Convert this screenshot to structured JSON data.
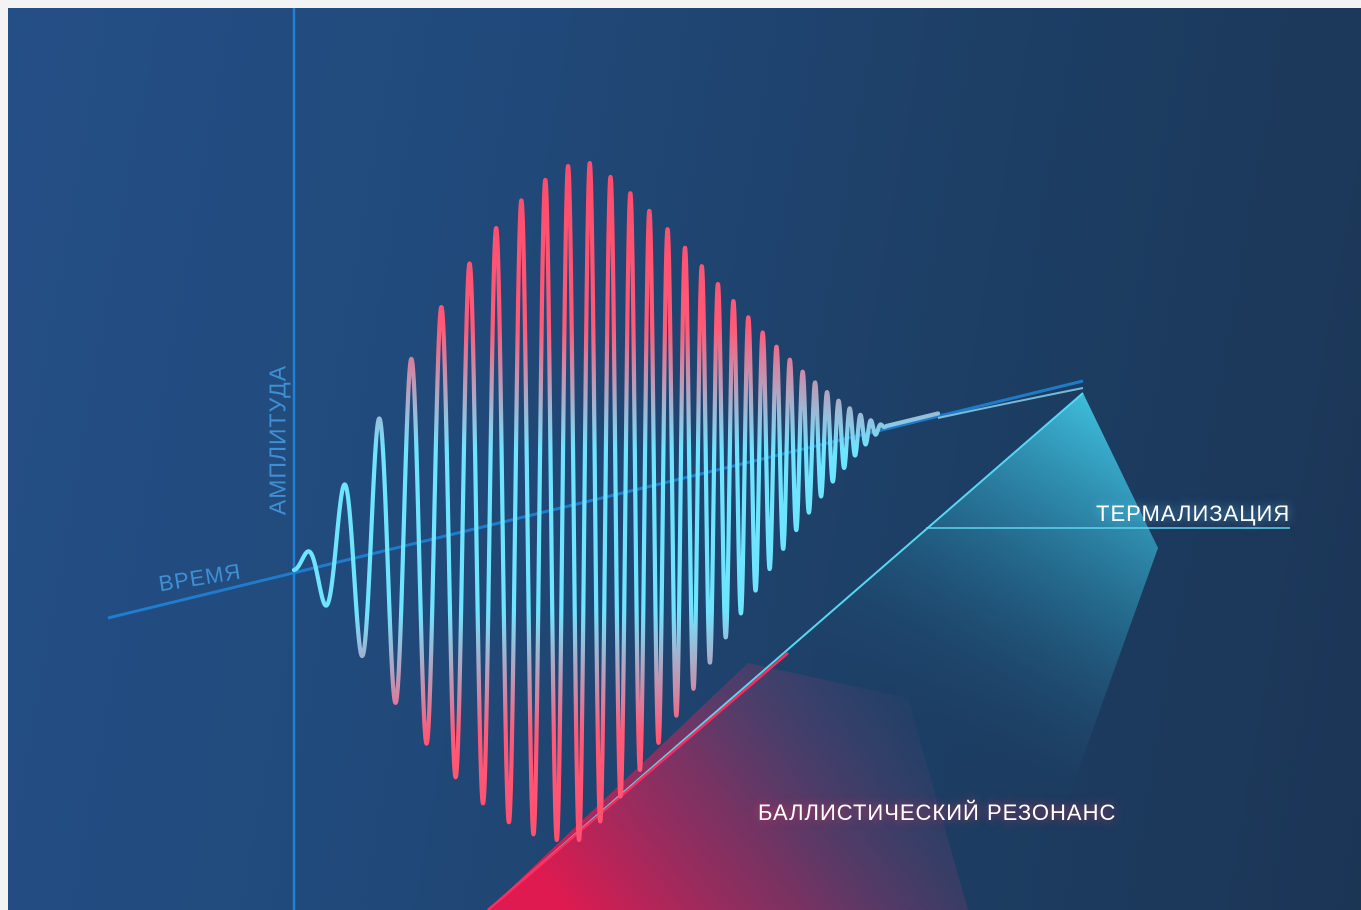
{
  "axes": {
    "amplitude_label": "АМПЛИТУДА",
    "time_label": "ВРЕМЯ"
  },
  "regions": {
    "thermalization_label": "ТЕРМАЛИЗАЦИЯ",
    "ballistic_resonance_label": "БАЛЛИСТИЧЕСКИЙ РЕЗОНАНС"
  },
  "colors": {
    "background": "#214a7c",
    "axis": "#1f82d6",
    "wave_core": "#6fe4ff",
    "wave_edge": "#ff4d6d",
    "thermalization": "#2fc4e6",
    "ballistic_resonance": "#e8184e"
  }
}
